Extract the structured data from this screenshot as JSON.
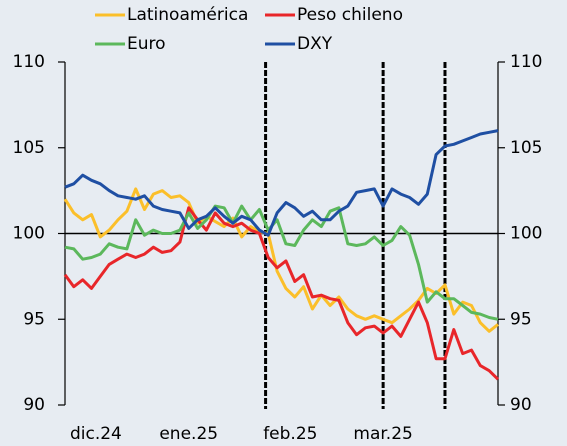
{
  "chart_data": {
    "type": "line",
    "x": [
      0,
      1,
      2,
      3,
      4,
      5,
      6,
      7,
      8,
      9,
      10,
      11,
      12,
      13,
      14,
      15,
      16,
      17,
      18,
      19,
      20,
      21,
      22,
      23,
      24,
      25,
      26,
      27,
      28,
      29,
      30,
      31,
      32,
      33,
      34,
      35,
      36,
      37,
      38,
      39,
      40,
      41,
      42,
      43,
      44,
      45,
      46,
      47,
      48,
      49
    ],
    "xlim": [
      0,
      49
    ],
    "xticks": [
      {
        "value": 3.5,
        "label": "dic.24"
      },
      {
        "value": 14,
        "label": "ene.25"
      },
      {
        "value": 25.5,
        "label": "feb.25"
      },
      {
        "value": 36,
        "label": "mar.25"
      }
    ],
    "ylim": [
      90,
      110
    ],
    "yticks": [
      90,
      95,
      100,
      105,
      110
    ],
    "y2lim": [
      90,
      110
    ],
    "y2ticks": [
      90,
      95,
      100,
      105,
      110
    ],
    "hline": 100,
    "vlines": [
      22.7,
      36,
      43
    ],
    "series": [
      {
        "name": "Latinoamérica",
        "color": "#fbbf2a",
        "values": [
          102.0,
          101.2,
          100.8,
          101.1,
          99.8,
          100.2,
          100.8,
          101.3,
          102.6,
          101.4,
          102.3,
          102.5,
          102.1,
          102.2,
          101.8,
          100.6,
          101.0,
          100.7,
          100.4,
          100.9,
          99.8,
          100.4,
          100.1,
          100.0,
          97.8,
          96.8,
          96.3,
          96.9,
          95.6,
          96.4,
          95.8,
          96.3,
          95.6,
          95.2,
          95.0,
          95.2,
          95.0,
          94.8,
          95.2,
          95.6,
          96.1,
          96.8,
          96.5,
          97.0,
          95.3,
          96.0,
          95.8,
          94.8,
          94.3,
          94.7
        ]
      },
      {
        "name": "Peso chileno",
        "color": "#e8262a",
        "values": [
          97.6,
          96.9,
          97.3,
          96.8,
          97.5,
          98.2,
          98.5,
          98.8,
          98.6,
          98.8,
          99.2,
          98.9,
          99.0,
          99.5,
          101.5,
          100.8,
          100.2,
          101.2,
          100.6,
          100.4,
          100.6,
          100.2,
          100.0,
          98.6,
          98.0,
          98.4,
          97.2,
          97.6,
          96.3,
          96.4,
          96.2,
          96.1,
          94.8,
          94.1,
          94.5,
          94.6,
          94.2,
          94.6,
          94.0,
          95.0,
          96.0,
          94.8,
          92.7,
          92.7,
          94.4,
          93.0,
          93.2,
          92.3,
          92.0,
          91.5
        ]
      },
      {
        "name": "Euro",
        "color": "#5cb85c",
        "values": [
          99.2,
          99.1,
          98.5,
          98.6,
          98.8,
          99.4,
          99.2,
          99.1,
          100.8,
          99.9,
          100.2,
          100.0,
          100.0,
          100.2,
          101.2,
          100.3,
          100.8,
          101.6,
          101.5,
          100.6,
          101.6,
          100.8,
          101.4,
          100.2,
          100.8,
          99.4,
          99.3,
          100.2,
          100.8,
          100.4,
          101.3,
          101.5,
          99.4,
          99.3,
          99.4,
          99.8,
          99.3,
          99.6,
          100.4,
          99.9,
          98.2,
          96.0,
          96.6,
          96.2,
          96.2,
          95.8,
          95.4,
          95.3,
          95.1,
          95.0
        ]
      },
      {
        "name": "DXY",
        "color": "#1f4fa3",
        "values": [
          102.7,
          102.9,
          103.4,
          103.1,
          102.9,
          102.5,
          102.2,
          102.1,
          102.0,
          102.2,
          101.6,
          101.4,
          101.3,
          101.2,
          100.3,
          100.8,
          101.0,
          101.5,
          101.0,
          100.6,
          101.0,
          100.8,
          100.2,
          99.9,
          101.2,
          101.8,
          101.5,
          101.0,
          101.3,
          100.8,
          100.8,
          101.3,
          101.6,
          102.4,
          102.5,
          102.6,
          101.6,
          102.6,
          102.3,
          102.1,
          101.7,
          102.3,
          104.6,
          105.1,
          105.2,
          105.4,
          105.6,
          105.8,
          105.9,
          106.0
        ]
      }
    ]
  }
}
